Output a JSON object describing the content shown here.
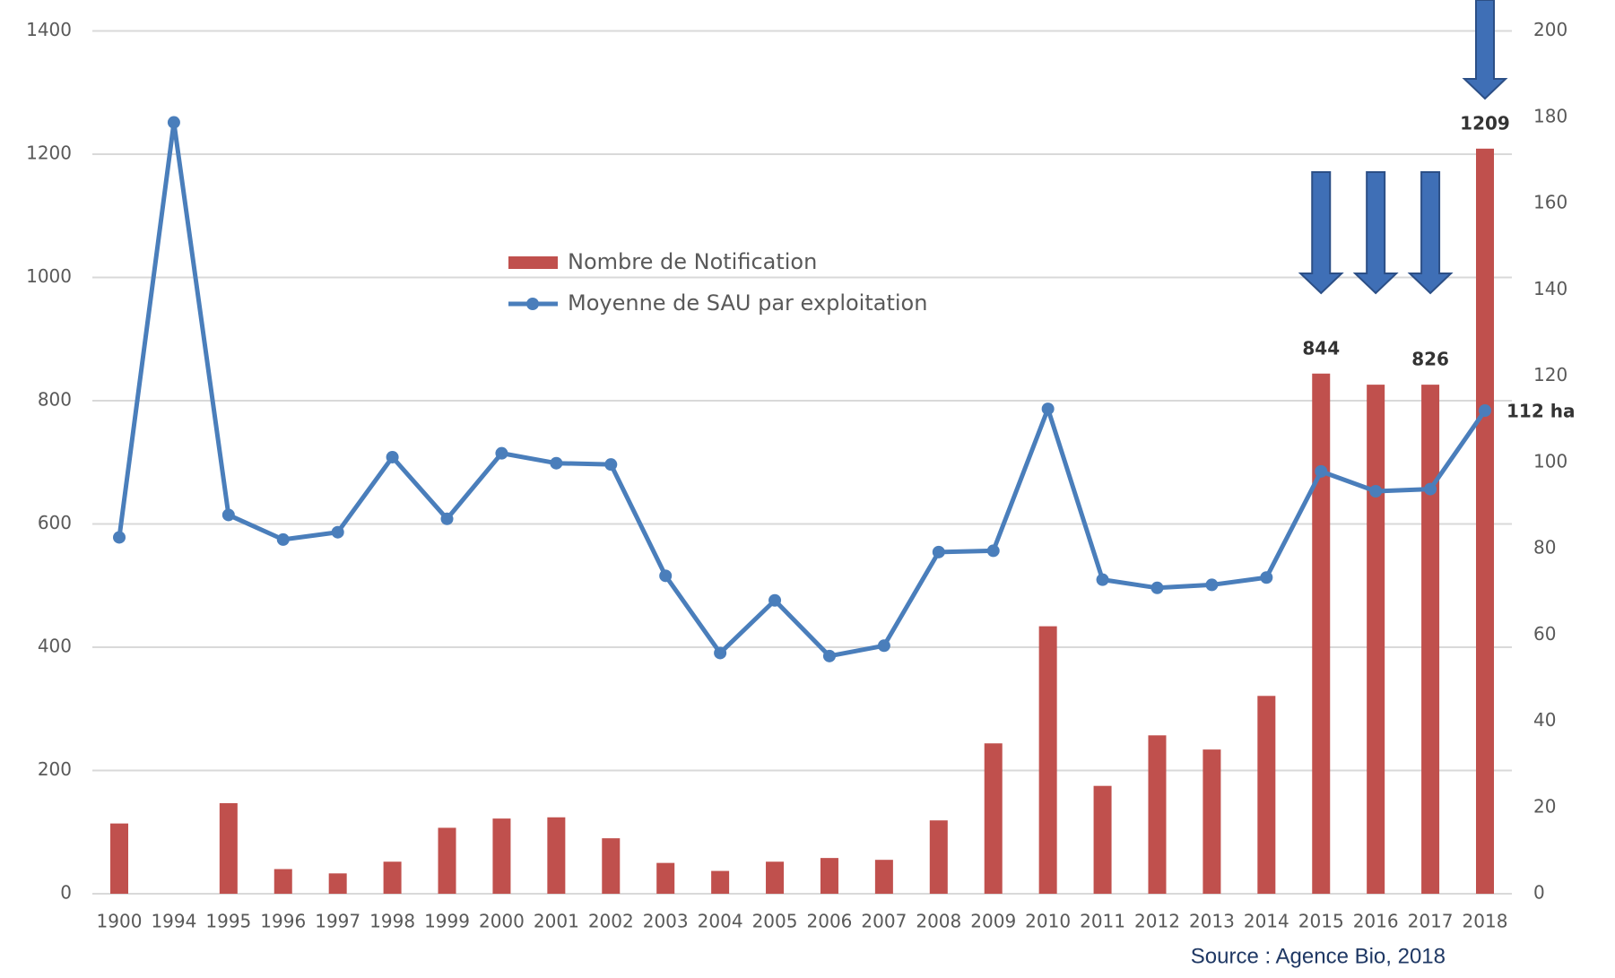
{
  "chart_data": {
    "type": "bar_line",
    "categories": [
      "1900",
      "1994",
      "1995",
      "1996",
      "1997",
      "1998",
      "1999",
      "2000",
      "2001",
      "2002",
      "2003",
      "2004",
      "2005",
      "2006",
      "2007",
      "2008",
      "2009",
      "2010",
      "2011",
      "2012",
      "2013",
      "2014",
      "2015",
      "2016",
      "2017",
      "2018"
    ],
    "series": [
      {
        "name": "Nombre de Notification",
        "type": "bar",
        "color": "#c0504d",
        "values": [
          114,
          0,
          147,
          40,
          33,
          52,
          107,
          122,
          124,
          90,
          50,
          37,
          52,
          58,
          55,
          119,
          244,
          434,
          175,
          257,
          234,
          321,
          844,
          826,
          826,
          1209
        ],
        "value_labels": [
          null,
          null,
          null,
          null,
          null,
          null,
          null,
          null,
          null,
          null,
          null,
          null,
          null,
          null,
          null,
          null,
          null,
          null,
          null,
          null,
          null,
          null,
          "844",
          null,
          "826",
          "1209"
        ]
      },
      {
        "name": "Moyenne de SAU par exploitation",
        "type": "line",
        "axis": "y2",
        "color": "#4a7ebb",
        "values": [
          82.6,
          178.8,
          87.8,
          82.1,
          83.8,
          101.2,
          86.9,
          102.1,
          99.8,
          99.5,
          73.7,
          55.8,
          68.0,
          55.1,
          57.5,
          79.2,
          79.5,
          112.4,
          72.8,
          70.9,
          71.6,
          73.3,
          97.9,
          93.3,
          93.8,
          112
        ],
        "value_labels": [
          null,
          null,
          null,
          null,
          null,
          null,
          null,
          null,
          null,
          null,
          null,
          null,
          null,
          null,
          null,
          null,
          null,
          null,
          null,
          null,
          null,
          null,
          null,
          null,
          null,
          "112 ha"
        ]
      }
    ],
    "ylim": [
      0,
      1400
    ],
    "yticks": [
      0,
      200,
      400,
      600,
      800,
      1000,
      1200,
      1400
    ],
    "y2lim": [
      0,
      200
    ],
    "y2ticks": [
      0,
      20,
      40,
      60,
      80,
      100,
      120,
      140,
      160,
      180,
      200
    ],
    "grid": true,
    "source": "Source : Agence Bio, 2018"
  }
}
